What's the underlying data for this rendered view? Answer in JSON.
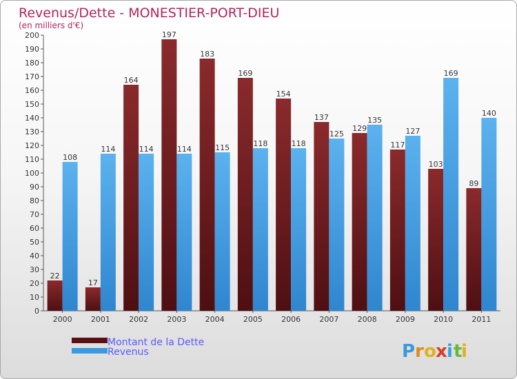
{
  "chart_data": {
    "type": "bar",
    "title": "Revenus/Dette - MONESTIER-PORT-DIEU",
    "subtitle": "(en milliers d'€)",
    "categories": [
      "2000",
      "2001",
      "2002",
      "2003",
      "2004",
      "2005",
      "2006",
      "2007",
      "2008",
      "2009",
      "2010",
      "2011"
    ],
    "series": [
      {
        "name": "Montant de la Dette",
        "color": "#7a1b1e",
        "values": [
          22,
          17,
          164,
          197,
          183,
          169,
          154,
          137,
          129,
          117,
          103,
          89
        ]
      },
      {
        "name": "Revenus",
        "color": "#4aa3e6",
        "values": [
          108,
          114,
          114,
          114,
          115,
          118,
          118,
          125,
          135,
          127,
          169,
          140
        ]
      }
    ],
    "ylim": [
      0,
      200
    ],
    "ytick_step": 10,
    "grid": false,
    "legend_position": "bottom-left"
  },
  "branding": {
    "logo_letters": [
      "P",
      "r",
      "o",
      "x",
      "i",
      "t",
      "i"
    ],
    "logo_colors": [
      "#3a9ad9",
      "#e08a1a",
      "#e0b020",
      "#d93a2a",
      "#3aa0d9",
      "#66b83a",
      "#e0b020"
    ]
  }
}
